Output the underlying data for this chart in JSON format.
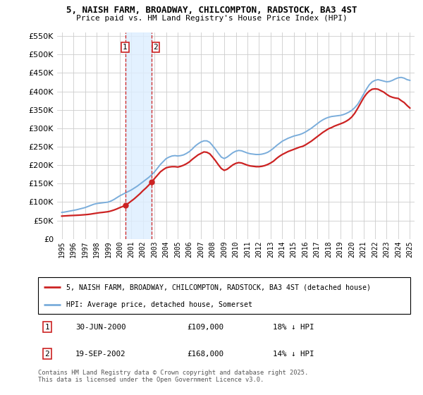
{
  "title_line1": "5, NAISH FARM, BROADWAY, CHILCOMPTON, RADSTOCK, BA3 4ST",
  "title_line2": "Price paid vs. HM Land Registry's House Price Index (HPI)",
  "background_color": "#ffffff",
  "grid_color": "#cccccc",
  "hpi_color": "#7aaddb",
  "price_color": "#cc2222",
  "shade_color": "#ddeeff",
  "sale1_date_label": "30-JUN-2000",
  "sale1_price": 109000,
  "sale1_label": "18% ↓ HPI",
  "sale2_date_label": "19-SEP-2002",
  "sale2_price": 168000,
  "sale2_label": "14% ↓ HPI",
  "legend_line1": "5, NAISH FARM, BROADWAY, CHILCOMPTON, RADSTOCK, BA3 4ST (detached house)",
  "legend_line2": "HPI: Average price, detached house, Somerset",
  "footer": "Contains HM Land Registry data © Crown copyright and database right 2025.\nThis data is licensed under the Open Government Licence v3.0.",
  "ylim": [
    0,
    560000
  ],
  "yticks": [
    0,
    50000,
    100000,
    150000,
    200000,
    250000,
    300000,
    350000,
    400000,
    450000,
    500000,
    550000
  ],
  "sale1_x": 2000.5,
  "sale2_x": 2002.72,
  "hpi_years": [
    1995,
    1995.25,
    1995.5,
    1995.75,
    1996,
    1996.25,
    1996.5,
    1996.75,
    1997,
    1997.25,
    1997.5,
    1997.75,
    1998,
    1998.25,
    1998.5,
    1998.75,
    1999,
    1999.25,
    1999.5,
    1999.75,
    2000,
    2000.25,
    2000.5,
    2000.75,
    2001,
    2001.25,
    2001.5,
    2001.75,
    2002,
    2002.25,
    2002.5,
    2002.75,
    2003,
    2003.25,
    2003.5,
    2003.75,
    2004,
    2004.25,
    2004.5,
    2004.75,
    2005,
    2005.25,
    2005.5,
    2005.75,
    2006,
    2006.25,
    2006.5,
    2006.75,
    2007,
    2007.25,
    2007.5,
    2007.75,
    2008,
    2008.25,
    2008.5,
    2008.75,
    2009,
    2009.25,
    2009.5,
    2009.75,
    2010,
    2010.25,
    2010.5,
    2010.75,
    2011,
    2011.25,
    2011.5,
    2011.75,
    2012,
    2012.25,
    2012.5,
    2012.75,
    2013,
    2013.25,
    2013.5,
    2013.75,
    2014,
    2014.25,
    2014.5,
    2014.75,
    2015,
    2015.25,
    2015.5,
    2015.75,
    2016,
    2016.25,
    2016.5,
    2016.75,
    2017,
    2017.25,
    2017.5,
    2017.75,
    2018,
    2018.25,
    2018.5,
    2018.75,
    2019,
    2019.25,
    2019.5,
    2019.75,
    2020,
    2020.25,
    2020.5,
    2020.75,
    2021,
    2021.25,
    2021.5,
    2021.75,
    2022,
    2022.25,
    2022.5,
    2022.75,
    2023,
    2023.25,
    2023.5,
    2023.75,
    2024,
    2024.25,
    2024.5,
    2024.75,
    2025
  ],
  "hpi_values": [
    72000,
    73000,
    74500,
    76000,
    77500,
    79000,
    81000,
    83000,
    85000,
    88000,
    91000,
    94000,
    96000,
    97000,
    98000,
    99000,
    100000,
    103000,
    107000,
    112000,
    117000,
    121000,
    125000,
    129000,
    133000,
    138000,
    143000,
    149000,
    155000,
    161000,
    167000,
    174000,
    182000,
    192000,
    202000,
    210000,
    218000,
    222000,
    225000,
    226000,
    225000,
    226000,
    228000,
    232000,
    237000,
    244000,
    252000,
    258000,
    263000,
    266000,
    266000,
    262000,
    253000,
    243000,
    232000,
    222000,
    218000,
    222000,
    228000,
    234000,
    238000,
    240000,
    239000,
    236000,
    233000,
    231000,
    230000,
    229000,
    229000,
    230000,
    232000,
    235000,
    240000,
    246000,
    253000,
    259000,
    265000,
    269000,
    273000,
    276000,
    279000,
    281000,
    283000,
    286000,
    290000,
    295000,
    300000,
    306000,
    312000,
    318000,
    323000,
    327000,
    330000,
    332000,
    333000,
    334000,
    335000,
    337000,
    340000,
    344000,
    349000,
    356000,
    365000,
    378000,
    392000,
    406000,
    418000,
    426000,
    430000,
    432000,
    430000,
    428000,
    426000,
    427000,
    430000,
    434000,
    437000,
    438000,
    436000,
    432000,
    430000
  ],
  "price_years": [
    1995,
    1995.25,
    1995.5,
    1995.75,
    1996,
    1996.25,
    1996.5,
    1996.75,
    1997,
    1997.25,
    1997.5,
    1997.75,
    1998,
    1998.25,
    1998.5,
    1998.75,
    1999,
    1999.25,
    1999.5,
    1999.75,
    2000,
    2000.25,
    2000.5,
    2000.75,
    2001,
    2001.25,
    2001.5,
    2001.75,
    2002,
    2002.25,
    2002.5,
    2002.75,
    2003,
    2003.25,
    2003.5,
    2003.75,
    2004,
    2004.25,
    2004.5,
    2004.75,
    2005,
    2005.25,
    2005.5,
    2005.75,
    2006,
    2006.25,
    2006.5,
    2006.75,
    2007,
    2007.25,
    2007.5,
    2007.75,
    2008,
    2008.25,
    2008.5,
    2008.75,
    2009,
    2009.25,
    2009.5,
    2009.75,
    2010,
    2010.25,
    2010.5,
    2010.75,
    2011,
    2011.25,
    2011.5,
    2011.75,
    2012,
    2012.25,
    2012.5,
    2012.75,
    2013,
    2013.25,
    2013.5,
    2013.75,
    2014,
    2014.25,
    2014.5,
    2014.75,
    2015,
    2015.25,
    2015.5,
    2015.75,
    2016,
    2016.25,
    2016.5,
    2016.75,
    2017,
    2017.25,
    2017.5,
    2017.75,
    2018,
    2018.25,
    2018.5,
    2018.75,
    2019,
    2019.25,
    2019.5,
    2019.75,
    2020,
    2020.25,
    2020.5,
    2020.75,
    2021,
    2021.25,
    2021.5,
    2021.75,
    2022,
    2022.25,
    2022.5,
    2022.75,
    2023,
    2023.25,
    2023.5,
    2023.75,
    2024,
    2024.25,
    2024.5,
    2024.75,
    2025
  ],
  "price_values": [
    62000,
    62500,
    63000,
    63500,
    63800,
    64200,
    64600,
    65200,
    65800,
    66500,
    67500,
    68800,
    70000,
    71200,
    72000,
    73000,
    74000,
    76000,
    78500,
    81500,
    85000,
    88000,
    92000,
    97000,
    103000,
    109000,
    116000,
    123000,
    131000,
    138000,
    146000,
    155000,
    164000,
    173000,
    182000,
    188000,
    193000,
    195000,
    196000,
    196000,
    195000,
    197000,
    200000,
    204000,
    209000,
    216000,
    222000,
    228000,
    232000,
    236000,
    235000,
    231000,
    222000,
    212000,
    201000,
    191000,
    186000,
    189000,
    195000,
    201000,
    205000,
    207000,
    206000,
    203000,
    200000,
    198000,
    197000,
    196000,
    196000,
    197000,
    199000,
    202000,
    206000,
    211000,
    218000,
    224000,
    229000,
    233000,
    237000,
    240000,
    243000,
    246000,
    249000,
    251000,
    255000,
    260000,
    265000,
    271000,
    277000,
    283000,
    289000,
    294000,
    299000,
    302000,
    306000,
    309000,
    312000,
    315000,
    319000,
    324000,
    331000,
    341000,
    354000,
    368000,
    382000,
    393000,
    401000,
    406000,
    407000,
    406000,
    402000,
    398000,
    392000,
    387000,
    384000,
    382000,
    381000,
    375000,
    370000,
    362000,
    355000
  ]
}
